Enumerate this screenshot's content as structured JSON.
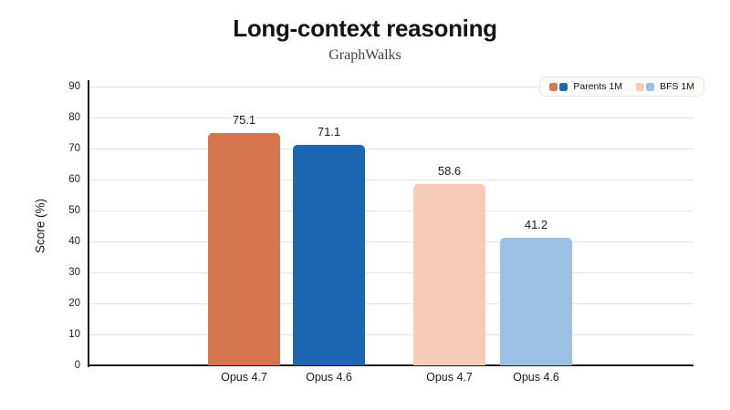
{
  "chart_data": {
    "type": "bar",
    "title": "Long-context reasoning",
    "subtitle": "GraphWalks",
    "xlabel": "",
    "ylabel": "Score (%)",
    "ylim": [
      0,
      90
    ],
    "ytick_step": 10,
    "grid": true,
    "legend_position": "top-right",
    "categories": [
      "Opus 4.7",
      "Opus 4.6",
      "Opus 4.7",
      "Opus 4.6"
    ],
    "bars": [
      {
        "label": "Opus 4.7",
        "series": "Parents 1M",
        "value": 75.1,
        "color": "#d5764f"
      },
      {
        "label": "Opus 4.6",
        "series": "Parents 1M",
        "value": 71.1,
        "color": "#1c67b0"
      },
      {
        "label": "Opus 4.7",
        "series": "BFS 1M",
        "value": 58.6,
        "color": "#f6cbb8"
      },
      {
        "label": "Opus 4.6",
        "series": "BFS 1M",
        "value": 41.2,
        "color": "#9bc0e4"
      }
    ],
    "series": [
      {
        "name": "Parents 1M",
        "models": [
          "Opus 4.7",
          "Opus 4.6"
        ],
        "values": [
          75.1,
          71.1
        ]
      },
      {
        "name": "BFS 1M",
        "models": [
          "Opus 4.7",
          "Opus 4.6"
        ],
        "values": [
          58.6,
          41.2
        ]
      }
    ],
    "legend": [
      {
        "label": "Parents 1M",
        "swatches": [
          "#d5764f",
          "#1c67b0"
        ]
      },
      {
        "label": "BFS 1M",
        "swatches": [
          "#f6cbb8",
          "#9bc0e4"
        ]
      }
    ],
    "colors": {
      "axis": "#1a1a1a",
      "gridline": "#e4e4e4",
      "title_text": "#141413",
      "subtitle_text": "#40403e",
      "legend_background": "#fdfcfa",
      "legend_border": "#e8e5de"
    }
  }
}
